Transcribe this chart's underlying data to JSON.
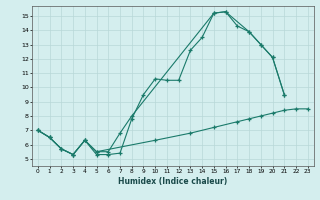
{
  "xlabel": "Humidex (Indice chaleur)",
  "bg_color": "#d4eeee",
  "line_color": "#1a7a6a",
  "grid_color": "#b8d8d8",
  "xlim": [
    -0.5,
    23.5
  ],
  "ylim": [
    4.5,
    15.7
  ],
  "xticks": [
    0,
    1,
    2,
    3,
    4,
    5,
    6,
    7,
    8,
    9,
    10,
    11,
    12,
    13,
    14,
    15,
    16,
    17,
    18,
    19,
    20,
    21,
    22,
    23
  ],
  "yticks": [
    5,
    6,
    7,
    8,
    9,
    10,
    11,
    12,
    13,
    14,
    15
  ],
  "series": [
    {
      "x": [
        0,
        1,
        2,
        3,
        4,
        5,
        6,
        7,
        8,
        9,
        10,
        11,
        12,
        13,
        14,
        15,
        16,
        17,
        18,
        19,
        20,
        21
      ],
      "y": [
        7.0,
        6.5,
        5.7,
        5.3,
        6.3,
        5.3,
        5.3,
        5.4,
        7.8,
        9.5,
        10.6,
        10.5,
        10.5,
        12.6,
        13.5,
        15.2,
        15.3,
        14.3,
        13.9,
        13.0,
        12.1,
        9.5
      ]
    },
    {
      "x": [
        0,
        1,
        2,
        3,
        4,
        5,
        6,
        7,
        8,
        15,
        16,
        18,
        19,
        20,
        21
      ],
      "y": [
        7.0,
        6.5,
        5.7,
        5.3,
        6.3,
        5.5,
        5.5,
        6.8,
        8.0,
        15.2,
        15.3,
        13.9,
        13.0,
        12.1,
        9.5
      ]
    },
    {
      "x": [
        0,
        1,
        2,
        3,
        4,
        5,
        10,
        13,
        15,
        17,
        18,
        19,
        20,
        21,
        22,
        23
      ],
      "y": [
        7.0,
        6.5,
        5.7,
        5.3,
        6.3,
        5.5,
        6.3,
        6.8,
        7.2,
        7.6,
        7.8,
        8.0,
        8.2,
        8.4,
        8.5,
        8.5
      ]
    }
  ]
}
